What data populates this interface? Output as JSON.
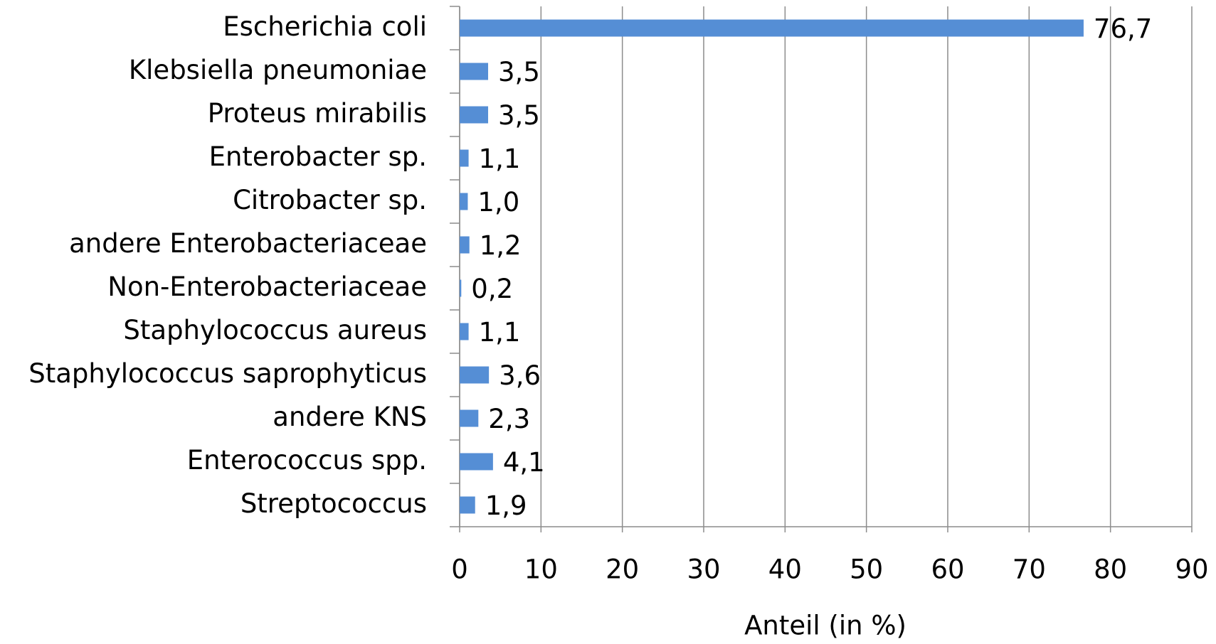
{
  "chart_data": {
    "type": "barh",
    "categories": [
      "Escherichia coli",
      "Klebsiella pneumoniae",
      "Proteus mirabilis",
      "Enterobacter sp.",
      "Citrobacter sp.",
      "andere Enterobacteriaceae",
      "Non-Enterobacteriaceae",
      "Staphylococcus aureus",
      "Staphylococcus saprophyticus",
      "andere KNS",
      "Enterococcus spp.",
      "Streptococcus"
    ],
    "values": [
      76.7,
      3.5,
      3.5,
      1.1,
      1.0,
      1.2,
      0.2,
      1.1,
      3.6,
      2.3,
      4.1,
      1.9
    ],
    "value_labels": [
      "76,7",
      "3,5",
      "3,5",
      "1,1",
      "1,0",
      "1,2",
      "0,2",
      "1,1",
      "3,6",
      "2,3",
      "4,1",
      "1,9"
    ],
    "color": "#558ed5",
    "xlabel": "Anteil (in %)",
    "xlim": [
      0,
      90
    ],
    "xticks": [
      0,
      10,
      20,
      30,
      40,
      50,
      60,
      70,
      80,
      90
    ],
    "grid": true
  }
}
